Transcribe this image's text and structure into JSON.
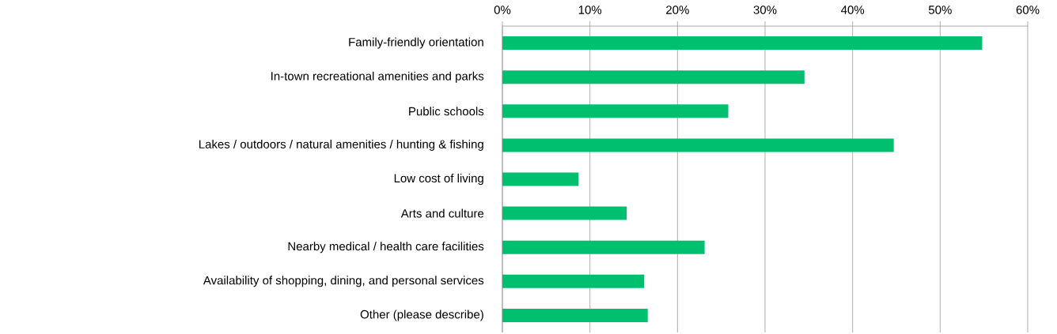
{
  "chart_data": {
    "type": "bar",
    "orientation": "horizontal",
    "categories": [
      "Family-friendly orientation",
      "In-town recreational amenities and parks",
      "Public schools",
      "Lakes / outdoors / natural amenities / hunting & fishing",
      "Low cost of living",
      "Arts and culture",
      "Nearby medical / health care facilities",
      "Availability of shopping, dining, and personal services",
      "Other (please describe)"
    ],
    "values": [
      54.8,
      34.5,
      25.8,
      44.7,
      8.7,
      14.2,
      23.1,
      16.2,
      16.6
    ],
    "color": "#00bf6f",
    "xlim": [
      0,
      60
    ],
    "xticks": [
      {
        "value": 0,
        "label": "0%"
      },
      {
        "value": 10,
        "label": "10%"
      },
      {
        "value": 20,
        "label": "20%"
      },
      {
        "value": 30,
        "label": "30%"
      },
      {
        "value": 40,
        "label": "40%"
      },
      {
        "value": 50,
        "label": "50%"
      },
      {
        "value": 60,
        "label": "60%"
      }
    ],
    "grid": "x"
  }
}
